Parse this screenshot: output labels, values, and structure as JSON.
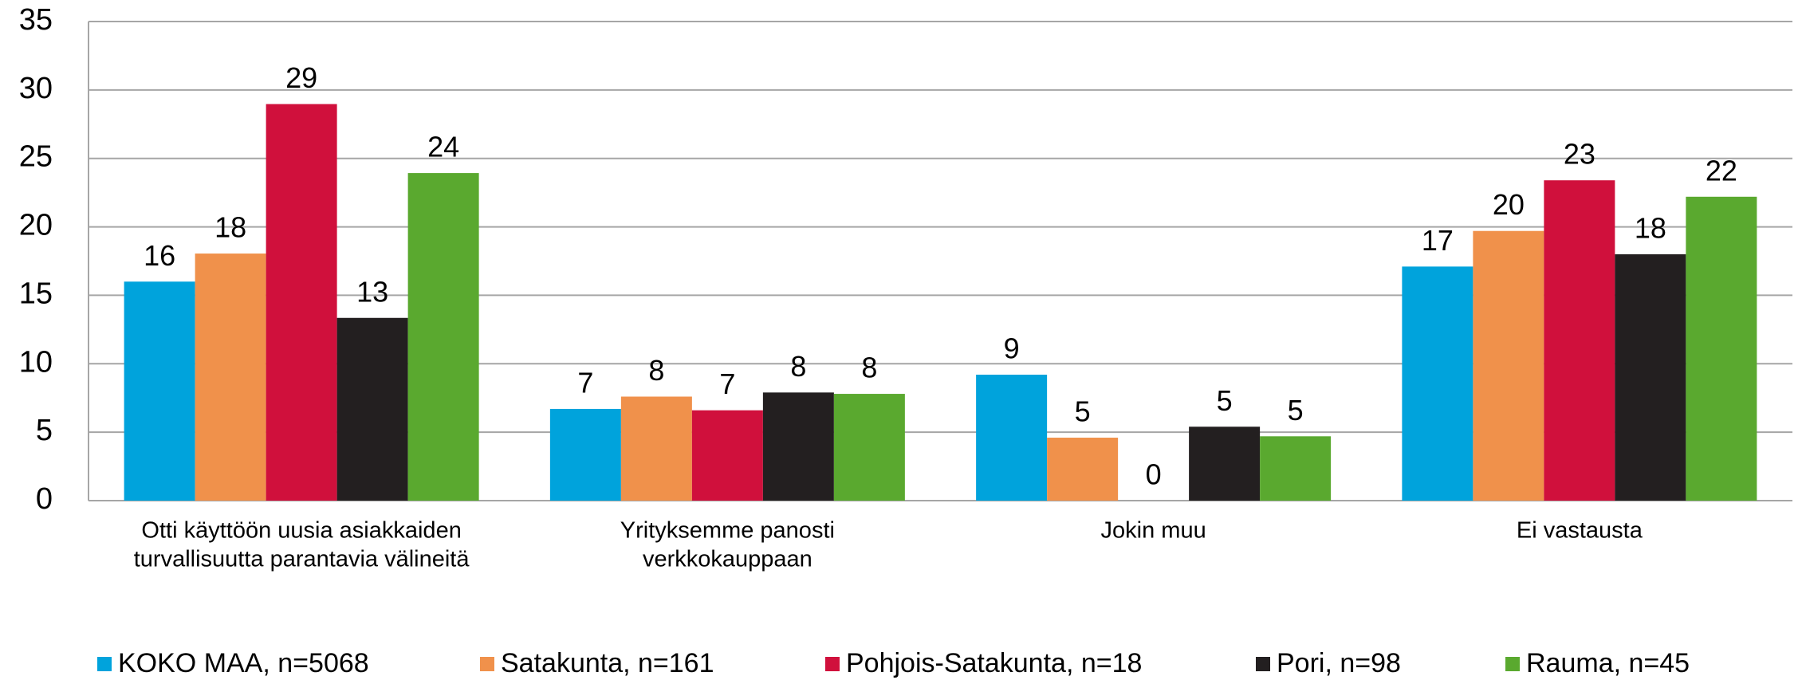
{
  "chart_data": {
    "type": "bar",
    "categories": [
      [
        "Otti käyttöön uusia asiakkaiden",
        "turvallisuutta parantavia välineitä"
      ],
      [
        "Yrityksemme panosti",
        "verkkokauppaan"
      ],
      [
        "Jokin muu"
      ],
      [
        "Ei vastausta"
      ]
    ],
    "series": [
      {
        "name": "KOKO MAA, n=5068",
        "color": "#00a3dc",
        "values": [
          16.0,
          6.7,
          9.2,
          17.1
        ],
        "value_labels": [
          "16",
          "7",
          "9",
          "17"
        ]
      },
      {
        "name": "Satakunta, n=161",
        "color": "#f0914b",
        "values": [
          18.05,
          7.6,
          4.6,
          19.7
        ],
        "value_labels": [
          "18",
          "8",
          "5",
          "20"
        ]
      },
      {
        "name": "Pohjois-Satakunta, n=18",
        "color": "#d0103c",
        "values": [
          28.97,
          6.6,
          0,
          23.4
        ],
        "value_labels": [
          "29",
          "7",
          "0",
          "23"
        ]
      },
      {
        "name": "Pori, n=98",
        "color": "#231f20",
        "values": [
          13.35,
          7.9,
          5.4,
          18.0
        ],
        "value_labels": [
          "13",
          "8",
          "5",
          "18"
        ]
      },
      {
        "name": "Rauma, n=45",
        "color": "#5aa92f",
        "values": [
          23.93,
          7.8,
          4.7,
          22.2
        ],
        "value_labels": [
          "24",
          "8",
          "5",
          "22"
        ]
      }
    ],
    "ylim": [
      0,
      35
    ],
    "yticks": [
      0,
      5,
      10,
      15,
      20,
      25,
      30,
      35
    ],
    "grid": true,
    "legend": "bottom"
  }
}
